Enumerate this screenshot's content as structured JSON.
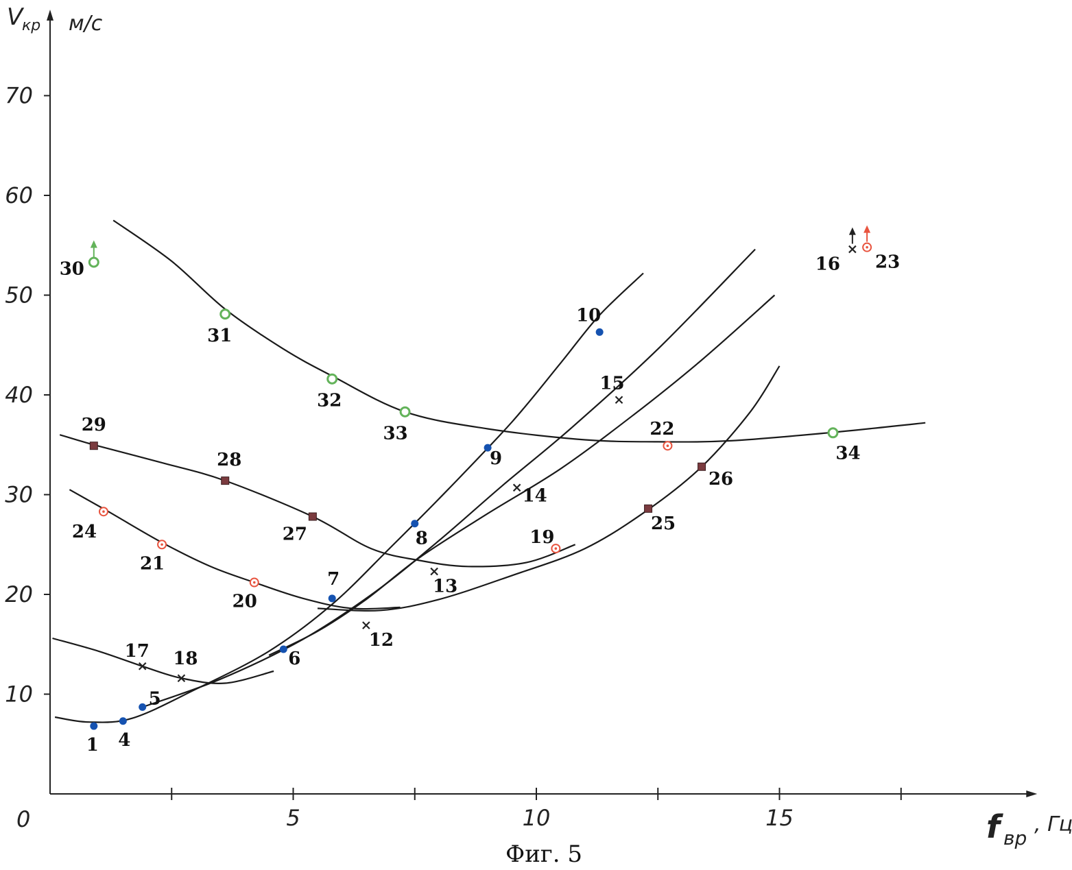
{
  "chart_data": {
    "type": "scatter",
    "caption": "Фиг. 5",
    "origin_label": "0",
    "ylabel_main": "V",
    "ylabel_sub": "кр",
    "yunit": "м/с",
    "xlabel_main": "f",
    "xlabel_sub": "вр",
    "xunit": ", Гц",
    "xlim": [
      0,
      20.3
    ],
    "ylim": [
      0,
      78
    ],
    "x_ticks": [
      2.5,
      5,
      7.5,
      10,
      12.5,
      15,
      17.5
    ],
    "x_tick_labels": [
      {
        "x": 5,
        "label": "5"
      },
      {
        "x": 10,
        "label": "10"
      },
      {
        "x": 15,
        "label": "15"
      }
    ],
    "y_ticks": [
      10,
      20,
      30,
      40,
      50,
      60,
      70
    ],
    "y_tick_labels": [
      "10",
      "20",
      "30",
      "40",
      "50",
      "60",
      "70"
    ],
    "colors": {
      "blue": "#1552b0",
      "green": "#63b35a",
      "red": "#e8543f",
      "brown": "#7b3b3f",
      "black": "#222222"
    },
    "series": [
      {
        "marker": "blue-dot",
        "points": [
          {
            "id": "1",
            "x": 0.9,
            "y": 6.8
          },
          {
            "id": "4",
            "x": 1.5,
            "y": 7.3
          },
          {
            "id": "5",
            "x": 1.9,
            "y": 8.7
          },
          {
            "id": "6",
            "x": 4.8,
            "y": 14.5
          },
          {
            "id": "7",
            "x": 5.8,
            "y": 19.6
          },
          {
            "id": "8",
            "x": 7.5,
            "y": 27.1
          },
          {
            "id": "9",
            "x": 9.0,
            "y": 34.7
          },
          {
            "id": "10",
            "x": 11.3,
            "y": 46.3
          }
        ]
      },
      {
        "marker": "black-cross",
        "points": [
          {
            "id": "12",
            "x": 6.5,
            "y": 16.9
          },
          {
            "id": "13",
            "x": 7.9,
            "y": 22.3
          },
          {
            "id": "14",
            "x": 9.6,
            "y": 30.7
          },
          {
            "id": "15",
            "x": 11.7,
            "y": 39.5
          },
          {
            "id": "16",
            "x": 16.5,
            "y": 54.6,
            "arrow": true
          },
          {
            "id": "17",
            "x": 1.9,
            "y": 12.8
          },
          {
            "id": "18",
            "x": 2.7,
            "y": 11.6
          }
        ]
      },
      {
        "marker": "red-dotted-circle",
        "points": [
          {
            "id": "19",
            "x": 10.4,
            "y": 24.6
          },
          {
            "id": "20",
            "x": 4.2,
            "y": 21.2
          },
          {
            "id": "21",
            "x": 2.3,
            "y": 25.0
          },
          {
            "id": "22",
            "x": 12.7,
            "y": 34.9
          },
          {
            "id": "23",
            "x": 16.8,
            "y": 54.8,
            "arrow": true
          },
          {
            "id": "24",
            "x": 1.1,
            "y": 28.3
          }
        ]
      },
      {
        "marker": "brown-square",
        "points": [
          {
            "id": "25",
            "x": 12.3,
            "y": 28.6
          },
          {
            "id": "26",
            "x": 13.4,
            "y": 32.8
          },
          {
            "id": "27",
            "x": 5.4,
            "y": 27.8
          },
          {
            "id": "28",
            "x": 3.6,
            "y": 31.4
          },
          {
            "id": "29",
            "x": 0.9,
            "y": 34.9
          }
        ]
      },
      {
        "marker": "green-ring",
        "points": [
          {
            "id": "30",
            "x": 0.9,
            "y": 53.3,
            "arrow": true
          },
          {
            "id": "31",
            "x": 3.6,
            "y": 48.1
          },
          {
            "id": "32",
            "x": 5.8,
            "y": 41.6
          },
          {
            "id": "33",
            "x": 7.3,
            "y": 38.3
          },
          {
            "id": "34",
            "x": 16.1,
            "y": 36.2
          }
        ]
      }
    ],
    "curves": [
      {
        "name": "blue-points-curve",
        "segments": [
          [
            [
              0.1,
              7.7
            ],
            [
              0.8,
              7.2
            ],
            [
              1.7,
              7.6
            ],
            [
              3.0,
              10.5
            ],
            [
              4.5,
              14.3
            ],
            [
              5.8,
              19.0
            ],
            [
              7.0,
              24.7
            ],
            [
              8.2,
              30.6
            ],
            [
              9.5,
              37.3
            ],
            [
              10.5,
              43.2
            ],
            [
              11.3,
              48.0
            ],
            [
              12.2,
              52.2
            ]
          ]
        ]
      },
      {
        "name": "cross-points-curve",
        "segments": [
          [
            [
              1.9,
              8.7
            ],
            [
              3.5,
              11.5
            ],
            [
              5.2,
              15.5
            ],
            [
              6.7,
              20.3
            ],
            [
              8.0,
              25.4
            ],
            [
              9.3,
              30.9
            ],
            [
              10.7,
              36.6
            ],
            [
              12.5,
              44.6
            ],
            [
              14.5,
              54.6
            ]
          ]
        ]
      },
      {
        "name": "upper-red-curve",
        "segments": [
          [
            [
              4.5,
              13.9
            ],
            [
              5.5,
              16.3
            ],
            [
              6.5,
              19.5
            ],
            [
              7.6,
              23.7
            ],
            [
              9.0,
              28.1
            ],
            [
              10.5,
              32.6
            ],
            [
              12.0,
              38.0
            ],
            [
              13.4,
              43.5
            ],
            [
              14.9,
              50.0
            ]
          ]
        ]
      },
      {
        "name": "lower-right-curve",
        "segments": [
          [
            [
              5.5,
              18.6
            ],
            [
              6.8,
              18.4
            ],
            [
              8.0,
              19.5
            ],
            [
              9.5,
              21.9
            ],
            [
              11.0,
              24.6
            ],
            [
              12.3,
              28.5
            ],
            [
              13.4,
              32.8
            ],
            [
              14.4,
              38.3
            ],
            [
              15.0,
              42.9
            ]
          ]
        ]
      },
      {
        "name": "green-points-curve",
        "segments": [
          [
            [
              1.3,
              57.5
            ],
            [
              2.5,
              53.4
            ],
            [
              3.6,
              48.6
            ],
            [
              4.8,
              44.6
            ],
            [
              5.8,
              41.9
            ],
            [
              7.3,
              38.3
            ],
            [
              9.0,
              36.6
            ],
            [
              11.0,
              35.5
            ],
            [
              12.5,
              35.3
            ],
            [
              14.0,
              35.4
            ],
            [
              16.0,
              36.2
            ],
            [
              18.0,
              37.2
            ]
          ]
        ]
      },
      {
        "name": "red-points-curve",
        "segments": [
          [
            [
              0.4,
              30.5
            ],
            [
              1.2,
              28.3
            ],
            [
              2.3,
              25.2
            ],
            [
              3.3,
              22.8
            ],
            [
              4.2,
              21.2
            ],
            [
              5.2,
              19.6
            ],
            [
              6.2,
              18.6
            ],
            [
              7.2,
              18.7
            ]
          ]
        ]
      },
      {
        "name": "square-points-curve",
        "segments": [
          [
            [
              0.2,
              36.0
            ],
            [
              0.9,
              35.0
            ],
            [
              2.3,
              33.2
            ],
            [
              3.6,
              31.4
            ],
            [
              5.4,
              27.8
            ],
            [
              6.6,
              24.6
            ],
            [
              7.6,
              23.4
            ],
            [
              8.6,
              22.8
            ],
            [
              9.8,
              23.2
            ],
            [
              10.8,
              25.0
            ]
          ]
        ]
      },
      {
        "name": "cross-17-18-curve",
        "segments": [
          [
            [
              0.05,
              15.6
            ],
            [
              1.0,
              14.3
            ],
            [
              1.9,
              12.8
            ],
            [
              2.7,
              11.6
            ],
            [
              3.6,
              11.1
            ],
            [
              4.6,
              12.3
            ]
          ]
        ]
      }
    ]
  }
}
